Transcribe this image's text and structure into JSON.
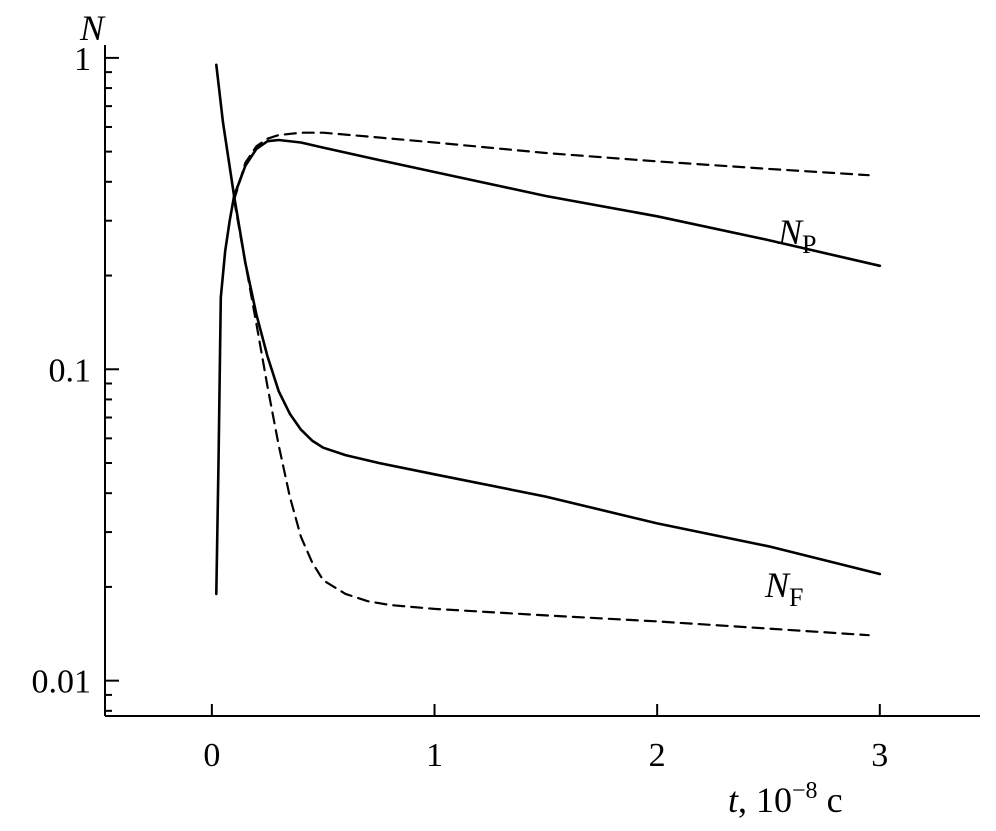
{
  "chart_data": {
    "type": "line",
    "y_scale": "log",
    "grid": false,
    "xlim": [
      -0.48,
      3.45
    ],
    "ylim": [
      0.0077,
      1.1
    ],
    "x_ticks": [
      0,
      1,
      2,
      3
    ],
    "x_tick_labels": [
      "0",
      "1",
      "2",
      "3"
    ],
    "y_ticks": [
      1,
      0.1,
      0.01
    ],
    "y_tick_labels": [
      "1",
      "0.1",
      "0.01"
    ],
    "ylabel": "N",
    "xlabel": {
      "var": "t",
      "sep": ", 10",
      "exp": "−8",
      "unit": " c"
    },
    "series": [
      {
        "name": "N_P",
        "style": "solid",
        "label": {
          "main": "N",
          "sub": "P"
        },
        "x": [
          0.02,
          0.03,
          0.04,
          0.06,
          0.08,
          0.1,
          0.15,
          0.2,
          0.25,
          0.3,
          0.4,
          0.5,
          0.75,
          1.0,
          1.5,
          2.0,
          2.5,
          3.0
        ],
        "y": [
          0.019,
          0.05,
          0.17,
          0.24,
          0.3,
          0.36,
          0.45,
          0.51,
          0.54,
          0.545,
          0.535,
          0.515,
          0.47,
          0.43,
          0.36,
          0.31,
          0.26,
          0.215
        ]
      },
      {
        "name": "N_P (dashed)",
        "style": "dashed",
        "x": [
          0.1,
          0.15,
          0.2,
          0.25,
          0.3,
          0.4,
          0.5,
          0.75,
          1.0,
          1.5,
          2.0,
          2.5,
          2.95
        ],
        "y": [
          0.35,
          0.46,
          0.52,
          0.55,
          0.565,
          0.575,
          0.575,
          0.555,
          0.535,
          0.495,
          0.465,
          0.44,
          0.42
        ]
      },
      {
        "name": "N_F",
        "style": "solid",
        "label": {
          "main": "N",
          "sub": "F"
        },
        "x": [
          0.02,
          0.05,
          0.1,
          0.15,
          0.2,
          0.25,
          0.3,
          0.35,
          0.4,
          0.45,
          0.5,
          0.6,
          0.75,
          1.0,
          1.5,
          2.0,
          2.5,
          3.0
        ],
        "y": [
          0.95,
          0.62,
          0.36,
          0.22,
          0.15,
          0.11,
          0.085,
          0.072,
          0.064,
          0.059,
          0.056,
          0.053,
          0.05,
          0.046,
          0.039,
          0.032,
          0.027,
          0.022
        ]
      },
      {
        "name": "N_F (dashed)",
        "style": "dashed",
        "x": [
          0.1,
          0.15,
          0.2,
          0.25,
          0.3,
          0.35,
          0.4,
          0.45,
          0.5,
          0.6,
          0.7,
          0.8,
          1.0,
          1.5,
          2.0,
          2.5,
          2.95
        ],
        "y": [
          0.35,
          0.22,
          0.14,
          0.088,
          0.057,
          0.039,
          0.029,
          0.024,
          0.021,
          0.019,
          0.018,
          0.0175,
          0.017,
          0.0162,
          0.0155,
          0.0147,
          0.014
        ]
      }
    ]
  }
}
